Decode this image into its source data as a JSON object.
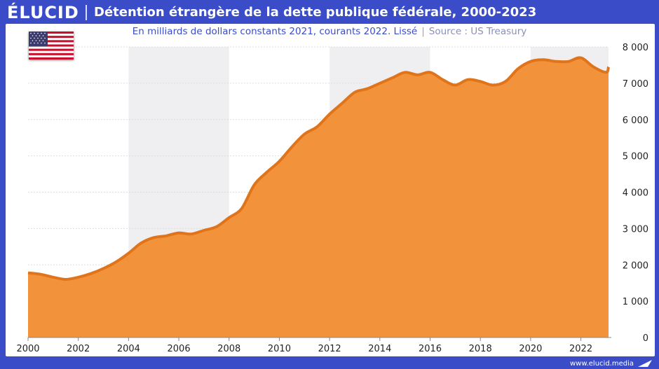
{
  "brand": "ÉLUCID",
  "title": "Détention étrangère de la dette publique fédérale, 2000-2023",
  "subtitle": {
    "main": "En milliards de dollars constants 2021, courants 2022. Lissé",
    "separator": "|",
    "source": "Source : US Treasury"
  },
  "footer": "www.elucid.media",
  "icons": {
    "flag": "us-flag-icon",
    "footer_mark": "elucid-mark-icon"
  },
  "colors": {
    "accent": "#3a4cc8",
    "area_fill": "#f2923a",
    "area_line": "#e0741a",
    "band": "#efeff1"
  },
  "chart_data": {
    "type": "area",
    "title": "Détention étrangère de la dette publique fédérale, 2000-2023",
    "xlabel": "",
    "ylabel": "",
    "xlim": [
      2000,
      2023.1
    ],
    "ylim": [
      0,
      8000
    ],
    "grid": true,
    "y_axis_side": "right",
    "x_ticks": [
      2000,
      2002,
      2004,
      2006,
      2008,
      2010,
      2012,
      2014,
      2016,
      2018,
      2020,
      2022
    ],
    "y_ticks": [
      0,
      1000,
      2000,
      3000,
      4000,
      5000,
      6000,
      7000,
      8000
    ],
    "y_tick_labels": [
      "0",
      "1 000",
      "2 000",
      "3 000",
      "4 000",
      "5 000",
      "6 000",
      "7 000",
      "8 000"
    ],
    "shaded_bands": [
      [
        2004,
        2008
      ],
      [
        2012,
        2016
      ],
      [
        2020,
        2023.1
      ]
    ],
    "series": [
      {
        "points": [
          [
            2000.0,
            1780
          ],
          [
            2000.5,
            1740
          ],
          [
            2001.0,
            1660
          ],
          [
            2001.5,
            1600
          ],
          [
            2002.0,
            1660
          ],
          [
            2002.5,
            1760
          ],
          [
            2003.0,
            1900
          ],
          [
            2003.5,
            2080
          ],
          [
            2004.0,
            2320
          ],
          [
            2004.5,
            2600
          ],
          [
            2005.0,
            2750
          ],
          [
            2005.5,
            2800
          ],
          [
            2006.0,
            2880
          ],
          [
            2006.5,
            2850
          ],
          [
            2007.0,
            2950
          ],
          [
            2007.5,
            3050
          ],
          [
            2008.0,
            3300
          ],
          [
            2008.5,
            3550
          ],
          [
            2009.0,
            4200
          ],
          [
            2009.5,
            4550
          ],
          [
            2010.0,
            4850
          ],
          [
            2010.5,
            5250
          ],
          [
            2011.0,
            5600
          ],
          [
            2011.5,
            5800
          ],
          [
            2012.0,
            6150
          ],
          [
            2012.5,
            6450
          ],
          [
            2013.0,
            6750
          ],
          [
            2013.5,
            6850
          ],
          [
            2014.0,
            7000
          ],
          [
            2014.5,
            7150
          ],
          [
            2015.0,
            7300
          ],
          [
            2015.5,
            7230
          ],
          [
            2016.0,
            7300
          ],
          [
            2016.5,
            7100
          ],
          [
            2017.0,
            6950
          ],
          [
            2017.5,
            7100
          ],
          [
            2018.0,
            7050
          ],
          [
            2018.5,
            6950
          ],
          [
            2019.0,
            7050
          ],
          [
            2019.5,
            7400
          ],
          [
            2020.0,
            7600
          ],
          [
            2020.5,
            7650
          ],
          [
            2021.0,
            7600
          ],
          [
            2021.5,
            7600
          ],
          [
            2022.0,
            7700
          ],
          [
            2022.5,
            7450
          ],
          [
            2023.0,
            7300
          ],
          [
            2023.1,
            7450
          ]
        ]
      }
    ]
  }
}
